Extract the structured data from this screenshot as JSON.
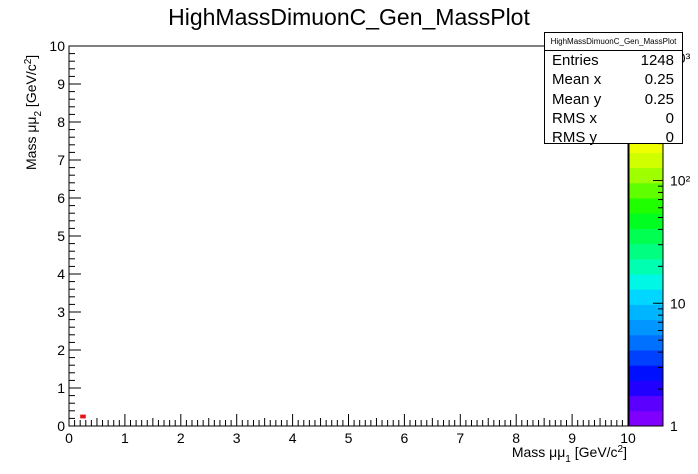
{
  "title": "HighMassDimuonC_Gen_MassPlot",
  "stats": {
    "title": "HighMassDimuonC_Gen_MassPlot",
    "rows": [
      {
        "label": "Entries",
        "value": "1248"
      },
      {
        "label": "Mean x",
        "value": "0.25"
      },
      {
        "label": "Mean y",
        "value": "0.25"
      },
      {
        "label": "RMS x",
        "value": "0"
      },
      {
        "label": "RMS y",
        "value": "0"
      }
    ]
  },
  "chart_data": {
    "type": "heatmap",
    "title": "HighMassDimuonC_Gen_MassPlot",
    "xlabel": "Mass μμ₁ [GeV/c²]",
    "ylabel": "Mass μμ₂ [GeV/c²]",
    "xlim": [
      0,
      10
    ],
    "ylim": [
      0,
      10
    ],
    "x_ticks": [
      "0",
      "1",
      "2",
      "3",
      "4",
      "5",
      "6",
      "7",
      "8",
      "9",
      "10"
    ],
    "y_ticks": [
      "0",
      "1",
      "2",
      "3",
      "4",
      "5",
      "6",
      "7",
      "8",
      "9",
      "10"
    ],
    "z_scale": "log",
    "zlim": [
      1,
      1248
    ],
    "z_ticks": [
      "1",
      "10",
      "10²",
      "10³"
    ],
    "cells": [
      {
        "x": 0.25,
        "y": 0.25,
        "z": 1248
      }
    ],
    "palette": [
      "#7f00ff",
      "#5b00ff",
      "#2200ff",
      "#0010ff",
      "#0040ff",
      "#0070ff",
      "#0095ff",
      "#00b5ff",
      "#00d6ff",
      "#00f7e6",
      "#00ffb0",
      "#00ff80",
      "#00ff50",
      "#00ff20",
      "#20ff00",
      "#60ff00",
      "#9fff00",
      "#d0ff00",
      "#f0ff00",
      "#fffa00",
      "#ffd000",
      "#ffa000",
      "#ff7000",
      "#ff4000",
      "#ff1000"
    ],
    "cell_color": "#e41414"
  }
}
